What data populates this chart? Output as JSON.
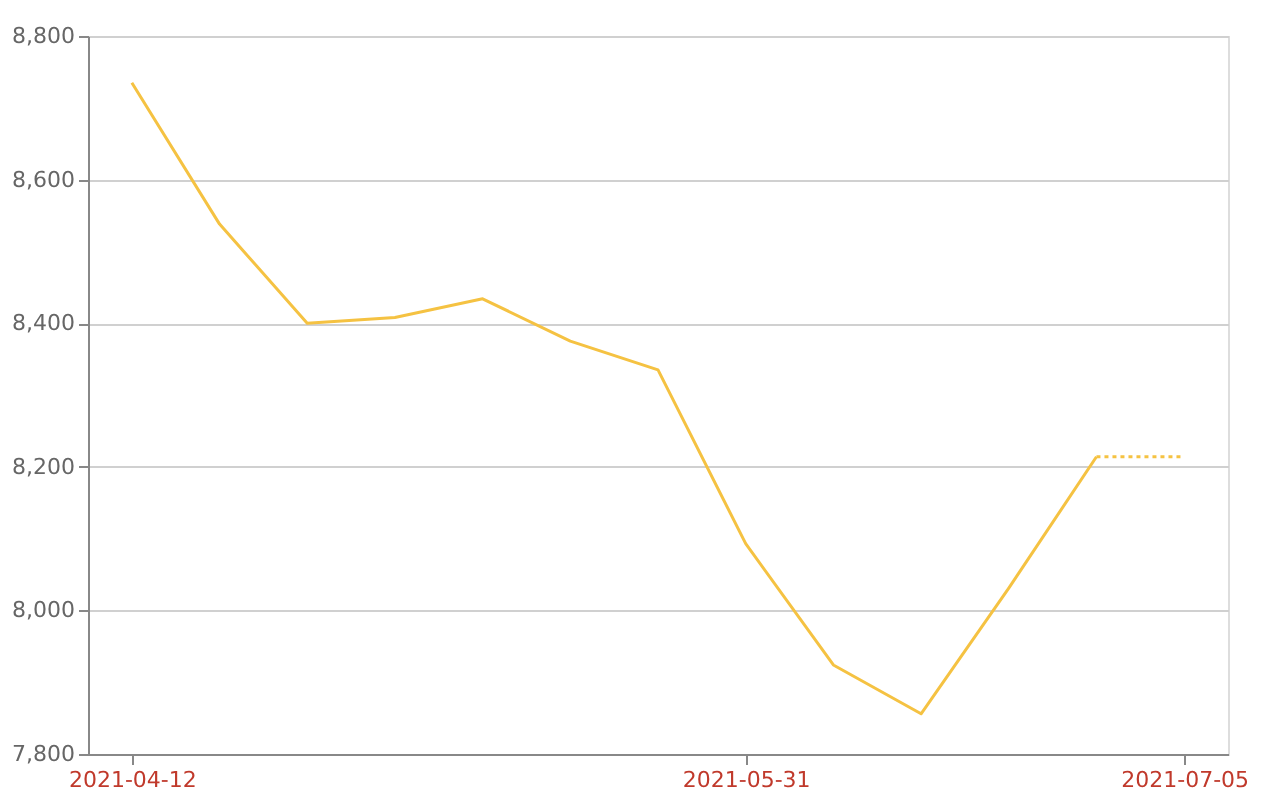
{
  "chart_data": {
    "type": "line",
    "x": [
      "2021-04-12",
      "2021-04-19",
      "2021-04-26",
      "2021-05-03",
      "2021-05-10",
      "2021-05-17",
      "2021-05-24",
      "2021-05-31",
      "2021-06-07",
      "2021-06-14",
      "2021-06-21",
      "2021-06-28"
    ],
    "series": [
      {
        "color": "#f5c242",
        "values": [
          8735,
          8538,
          8400,
          8408,
          8434,
          8375,
          8335,
          8093,
          7924,
          7856,
          8031,
          8214
        ]
      },
      {
        "color": "#f5c242",
        "line_style": "dotted",
        "x": [
          "2021-06-28",
          "2021-07-05"
        ],
        "values": [
          8214,
          8214
        ]
      }
    ],
    "xlim": [
      "2021-04-08T12:00",
      "2021-07-08T12:00"
    ],
    "xticks": [
      "2021-04-12",
      "2021-05-31",
      "2021-07-05"
    ],
    "ylim": [
      7800,
      8800
    ],
    "yticks": [
      {
        "value": 7800,
        "label": "7,800"
      },
      {
        "value": 8000,
        "label": "8,000"
      },
      {
        "value": 8200,
        "label": "8,200"
      },
      {
        "value": 8400,
        "label": "8,400"
      },
      {
        "value": 8600,
        "label": "8,600"
      },
      {
        "value": 8800,
        "label": "8,800"
      }
    ],
    "grid": "y",
    "line_style": "solid",
    "marker": "none"
  }
}
